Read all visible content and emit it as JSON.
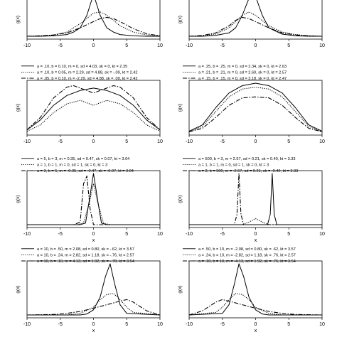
{
  "figure": {
    "legends": [
      {
        "left": [
          "a = .10, b = 0.10, m = 0, sd = 4.03, sk = 0, kt = 2.35",
          "a = .10, b = 0.05, m = 2.29, sd = 4.88, sk = -.09, kt = 2.42",
          "a = .05, b = 0.10, m = -2.29, sd = 4.88, sk = .09, kt = 2.42"
        ],
        "right": [
          "a = .25, b = .25, m = 0, sd = 2.34, sk = 0, kt = 2.63",
          "a = .21, b = .21, m = 0, sd = 2.60, sk = 0, kt = 2.57",
          "a = .15, b = .15, m = 0, sd = 3.18, sk = 0, kt = 2.47"
        ]
      },
      {
        "left": [
          "a = 5, b = 3, m = 0.35, sd = 0.47, sk = 0.07, kt = 3.04",
          "a = 1, b = 1, m = 0, sd = 1, sk = 0, kt = 3",
          "a = 3, b = 5, m = -0.35, sd = -0.47, sk = -0.07, kt = 3.04"
        ],
        "right": [
          "a = 500, b = 3, m = 2.57, sd = 0.21, sk = 0.40, kt = 3.33",
          "a = 1, b = 1, m = 0, sd = 1, sk = 0, kt = 3",
          "a = 3, b = 500, m = -2.57, sd = 0.21, sk = -0.40, kt = 3.33"
        ]
      },
      {
        "left": [
          "a = 10, b = .50, m = 2.08, sd = 0.80, sk = -.62, kt = 3.57",
          "a = 10, b = .24, m = 2.82, sd = 1.18, sk = -.76, kt = 2.57",
          "a = 10, b = .10, m = 4.13, sd = 1.92, sk = -.78, kt = 3.54"
        ],
        "right": [
          "a = .50, b = 10, m = -2.08, sd = 0.80, sk = .62, kt = 3.57",
          "a = .24, b = 10, m = -2.82, sd = 1.18, sk = .76, kt = 2.57",
          "a = .10, b = 10, m = -4.13, sd = 1.92, sk = .76, kt = 3.54"
        ]
      }
    ]
  },
  "chart_data": [
    {
      "type": "line",
      "ylabel": "g(x)",
      "xlabel": "",
      "xlim": [
        -10,
        10
      ],
      "x_ticks": [
        "-10",
        "-5",
        "0",
        "5",
        "10"
      ],
      "series": [
        {
          "style": "solid",
          "x": [
            -10,
            -8,
            -6,
            -4,
            -3,
            -2,
            -1,
            0,
            1,
            2,
            3,
            4,
            6,
            8,
            10
          ],
          "y": [
            0,
            0,
            0.01,
            0.04,
            0.1,
            0.2,
            0.5,
            1.0,
            0.5,
            0.2,
            0.1,
            0.04,
            0.01,
            0,
            0
          ]
        },
        {
          "style": "dotted",
          "x": [
            -10,
            -8,
            -6,
            -4,
            -2,
            0,
            1,
            2,
            3,
            4,
            6,
            8,
            10
          ],
          "y": [
            0,
            0.01,
            0.03,
            0.1,
            0.3,
            0.55,
            0.58,
            0.5,
            0.38,
            0.25,
            0.1,
            0.03,
            0.01
          ]
        },
        {
          "style": "dash-dot",
          "x": [
            -10,
            -8,
            -6,
            -4,
            -2,
            0,
            1,
            2,
            3,
            4,
            6,
            8,
            10
          ],
          "y": [
            0,
            0.01,
            0.03,
            0.08,
            0.2,
            0.35,
            0.42,
            0.45,
            0.42,
            0.35,
            0.18,
            0.06,
            0.01
          ]
        }
      ]
    },
    {
      "type": "line",
      "ylabel": "g(x)",
      "xlabel": "",
      "xlim": [
        -10,
        10
      ],
      "x_ticks": [
        "-10",
        "-5",
        "0",
        "5",
        "10"
      ],
      "series": [
        {
          "style": "solid",
          "x": [
            -10,
            -8,
            -6,
            -4,
            -3,
            -2,
            -1,
            0,
            1,
            2,
            4,
            6,
            8,
            10
          ],
          "y": [
            0,
            0,
            0.02,
            0.08,
            0.2,
            0.5,
            0.9,
            0.95,
            0.5,
            0.2,
            0.05,
            0.01,
            0,
            0
          ]
        },
        {
          "style": "dotted",
          "x": [
            -10,
            -8,
            -6,
            -4,
            -2,
            -1,
            0,
            2,
            4,
            6,
            8,
            10
          ],
          "y": [
            0,
            0.01,
            0.05,
            0.2,
            0.5,
            0.58,
            0.5,
            0.25,
            0.1,
            0.04,
            0.01,
            0
          ]
        },
        {
          "style": "dash-dot",
          "x": [
            -10,
            -8,
            -6,
            -4,
            -3,
            -2,
            -1,
            0,
            2,
            4,
            6,
            8,
            10
          ],
          "y": [
            0,
            0.02,
            0.08,
            0.25,
            0.38,
            0.45,
            0.42,
            0.35,
            0.2,
            0.08,
            0.03,
            0.01,
            0
          ]
        }
      ]
    },
    {
      "type": "line",
      "ylabel": "g(x)",
      "xlabel": "",
      "xlim": [
        -10,
        10
      ],
      "x_ticks": [
        "-10",
        "-5",
        "0",
        "5",
        "10"
      ],
      "series": [
        {
          "style": "dash-dot",
          "x": [
            -10,
            -8,
            -6,
            -4,
            -3,
            -2,
            0,
            2,
            3,
            4,
            6,
            8,
            10
          ],
          "y": [
            0.05,
            0.3,
            0.7,
            0.92,
            0.95,
            0.9,
            0.8,
            0.9,
            0.95,
            0.92,
            0.7,
            0.3,
            0.05
          ]
        },
        {
          "style": "dotted",
          "x": [
            -10,
            -8,
            -6,
            -4,
            -2,
            0,
            2,
            4,
            6,
            8,
            10
          ],
          "y": [
            0.02,
            0.15,
            0.4,
            0.58,
            0.65,
            0.55,
            0.65,
            0.58,
            0.4,
            0.15,
            0.02
          ]
        },
        {
          "style": "solid",
          "x": [
            -10,
            -8,
            -6,
            -4,
            -2,
            0,
            2,
            4,
            6,
            8,
            10
          ],
          "y": [
            0.05,
            0.25,
            0.55,
            0.75,
            0.85,
            0.9,
            0.85,
            0.75,
            0.55,
            0.25,
            0.05
          ]
        }
      ]
    },
    {
      "type": "line",
      "ylabel": "g(x)",
      "xlabel": "",
      "xlim": [
        -10,
        10
      ],
      "x_ticks": [
        "-10",
        "-5",
        "0",
        "5",
        "10"
      ],
      "series": [
        {
          "style": "solid",
          "x": [
            -10,
            -8,
            -6,
            -4,
            -2,
            0,
            2,
            4,
            6,
            8,
            10
          ],
          "y": [
            0.02,
            0.15,
            0.5,
            0.8,
            0.95,
            1.0,
            0.95,
            0.8,
            0.5,
            0.15,
            0.02
          ]
        },
        {
          "style": "dotted",
          "x": [
            -10,
            -8,
            -6,
            -4,
            -2,
            0,
            2,
            4,
            6,
            8,
            10
          ],
          "y": [
            0.01,
            0.12,
            0.42,
            0.72,
            0.88,
            0.92,
            0.88,
            0.72,
            0.42,
            0.12,
            0.01
          ]
        },
        {
          "style": "dash-dot",
          "x": [
            -10,
            -8,
            -6,
            -4,
            -2,
            0,
            2,
            4,
            6,
            8,
            10
          ],
          "y": [
            0.01,
            0.08,
            0.3,
            0.55,
            0.7,
            0.72,
            0.7,
            0.55,
            0.3,
            0.08,
            0.01
          ]
        }
      ]
    },
    {
      "type": "line",
      "ylabel": "g(x)",
      "xlabel": "x",
      "xlim": [
        -10,
        10
      ],
      "x_ticks": [
        "-10",
        "-5",
        "0",
        "5",
        "10"
      ],
      "series": [
        {
          "style": "solid",
          "x": [
            -10,
            -2,
            -1.2,
            -0.6,
            0,
            0.6,
            1.2,
            2,
            10
          ],
          "y": [
            0,
            0,
            0.03,
            0.5,
            1.0,
            0.5,
            0.03,
            0,
            0
          ]
        },
        {
          "style": "dotted",
          "x": [
            -10,
            -2.5,
            -1.5,
            -0.7,
            0,
            0.7,
            1.5,
            2.5,
            10
          ],
          "y": [
            0,
            0,
            0.03,
            0.4,
            0.8,
            0.4,
            0.03,
            0,
            0
          ]
        },
        {
          "style": "dash-dot",
          "x": [
            -10,
            -3,
            -2,
            -1.5,
            -1,
            -0.5,
            0,
            10
          ],
          "y": [
            0,
            0,
            0.05,
            0.8,
            0.95,
            0.3,
            0,
            0
          ]
        }
      ]
    },
    {
      "type": "line",
      "ylabel": "g(x)",
      "xlabel": "x",
      "xlim": [
        -10,
        10
      ],
      "x_ticks": [
        "-10",
        "-5",
        "0",
        "5",
        "10"
      ],
      "series": [
        {
          "style": "solid",
          "x": [
            -10,
            1.8,
            2.2,
            2.5,
            2.8,
            3.2,
            10
          ],
          "y": [
            0,
            0,
            0.2,
            1.0,
            0.2,
            0,
            0
          ]
        },
        {
          "style": "dotted",
          "x": [
            -10,
            -2,
            -1,
            0,
            1,
            2,
            10
          ],
          "y": [
            0,
            0,
            0.05,
            0.12,
            0.05,
            0,
            0
          ]
        },
        {
          "style": "dash-dot",
          "x": [
            -10,
            -3.2,
            -2.8,
            -2.5,
            -2.2,
            -1.8,
            10
          ],
          "y": [
            0,
            0,
            0.2,
            1.0,
            0.2,
            0,
            0
          ]
        }
      ]
    },
    {
      "type": "line",
      "ylabel": "g(x)",
      "xlabel": "x",
      "xlim": [
        -10,
        10
      ],
      "x_ticks": [
        "-10",
        "-5",
        "0",
        "5",
        "10"
      ],
      "series": [
        {
          "style": "solid",
          "x": [
            -10,
            -2,
            -1,
            0,
            1,
            1.8,
            2.5,
            3.2,
            4,
            5,
            10
          ],
          "y": [
            0,
            0,
            0.02,
            0.1,
            0.35,
            0.75,
            1.0,
            0.6,
            0.2,
            0.03,
            0
          ]
        },
        {
          "style": "dotted",
          "x": [
            -10,
            -4,
            -2,
            0,
            1,
            2,
            3,
            4,
            5,
            6,
            10
          ],
          "y": [
            0,
            0,
            0.03,
            0.15,
            0.3,
            0.4,
            0.42,
            0.3,
            0.15,
            0.05,
            0
          ]
        },
        {
          "style": "dash-dot",
          "x": [
            -10,
            -6,
            -4,
            -2,
            0,
            2,
            4,
            5,
            6,
            8,
            10
          ],
          "y": [
            0,
            0.01,
            0.03,
            0.07,
            0.13,
            0.2,
            0.27,
            0.3,
            0.25,
            0.08,
            0
          ]
        }
      ]
    },
    {
      "type": "line",
      "ylabel": "g(x)",
      "xlabel": "x",
      "xlim": [
        -10,
        10
      ],
      "x_ticks": [
        "-10",
        "-5",
        "0",
        "5",
        "10"
      ],
      "series": [
        {
          "style": "solid",
          "x": [
            -10,
            -5,
            -4,
            -3.2,
            -2.5,
            -1.8,
            -1,
            0,
            1,
            2,
            10
          ],
          "y": [
            0,
            0.03,
            0.2,
            0.6,
            1.0,
            0.75,
            0.35,
            0.1,
            0.02,
            0,
            0
          ]
        },
        {
          "style": "dotted",
          "x": [
            -10,
            -6,
            -5,
            -4,
            -3,
            -2,
            -1,
            0,
            2,
            4,
            10
          ],
          "y": [
            0,
            0.05,
            0.15,
            0.3,
            0.42,
            0.4,
            0.3,
            0.15,
            0.03,
            0,
            0
          ]
        },
        {
          "style": "dash-dot",
          "x": [
            -10,
            -8,
            -6,
            -5,
            -4,
            -2,
            0,
            2,
            4,
            6,
            10
          ],
          "y": [
            0,
            0.08,
            0.25,
            0.3,
            0.27,
            0.2,
            0.13,
            0.07,
            0.03,
            0.01,
            0
          ]
        }
      ]
    }
  ]
}
